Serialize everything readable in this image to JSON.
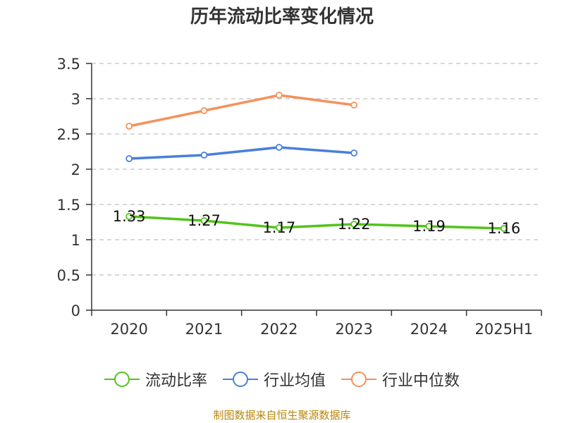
{
  "title": "历年流动比率变化情况",
  "source": "制图数据来自恒生聚源数据库",
  "chart_data": {
    "type": "line",
    "categories": [
      "2020",
      "2021",
      "2022",
      "2023",
      "2024",
      "2025H1"
    ],
    "ylim": [
      0,
      3.5
    ],
    "yticks": [
      "0",
      "0.5",
      "1",
      "1.5",
      "2",
      "2.5",
      "3",
      "3.5"
    ],
    "grid": true,
    "legend_position": "bottom",
    "series": [
      {
        "name": "流动比率",
        "color": "#52c41a",
        "values": [
          1.33,
          1.27,
          1.17,
          1.22,
          1.19,
          1.16
        ],
        "labels": [
          "1.33",
          "1.27",
          "1.17",
          "1.22",
          "1.19",
          "1.16"
        ]
      },
      {
        "name": "行业均值",
        "color": "#4a7fdc",
        "values": [
          2.15,
          2.2,
          2.31,
          2.23,
          null,
          null
        ]
      },
      {
        "name": "行业中位数",
        "color": "#f5915a",
        "values": [
          2.61,
          2.83,
          3.05,
          2.91,
          null,
          null
        ]
      }
    ]
  }
}
